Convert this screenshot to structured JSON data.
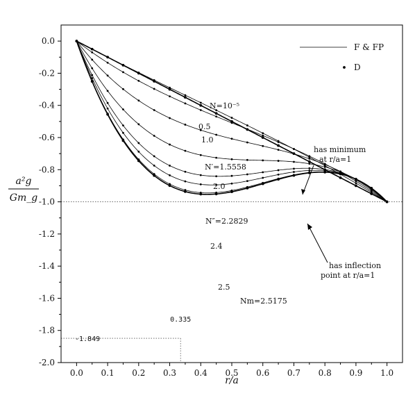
{
  "chart_data": {
    "type": "line",
    "title": "",
    "xlabel": "r/a",
    "ylabel_num": "a²g",
    "ylabel_den": "Gm_g",
    "xlim": [
      -0.05,
      1.05
    ],
    "ylim": [
      -2.0,
      0.1
    ],
    "xticks": [
      0.0,
      0.1,
      0.2,
      0.3,
      0.4,
      0.5,
      0.6,
      0.7,
      0.8,
      0.9,
      1.0
    ],
    "xtick_labels": [
      "0.0",
      "0.1",
      "0.2",
      "0.3",
      "0.4",
      "0.5",
      "0.6",
      "0.7",
      "0.8",
      "0.9",
      "1.0"
    ],
    "yticks": [
      0.0,
      -0.2,
      -0.4,
      -0.6,
      -0.8,
      -1.0,
      -1.2,
      -1.4,
      -1.6,
      -1.8,
      -2.0
    ],
    "ytick_labels": [
      "0.0",
      "-0.2",
      "-0.4",
      "-0.6",
      "-0.8",
      "-1.0",
      "-1.2",
      "-1.4",
      "-1.6",
      "-1.8",
      "-2.0"
    ],
    "legend": {
      "placement": "top-right",
      "entries": [
        {
          "label": "F & FP",
          "marker": "line"
        },
        {
          "label": "D",
          "marker": "dot"
        }
      ]
    },
    "series": [
      {
        "label": "N=10⁻⁵",
        "N": 1e-05,
        "bold": true
      },
      {
        "label": "0.5",
        "N": 0.5,
        "bold": false
      },
      {
        "label": "1.0",
        "N": 1.0,
        "bold": false
      },
      {
        "label": "N′=1.5558",
        "N": 1.5558,
        "bold": false
      },
      {
        "label": "2.0",
        "N": 2.0,
        "bold": false
      },
      {
        "label": "N″=2.2829",
        "N": 2.2829,
        "bold": false
      },
      {
        "label": "2.4",
        "N": 2.4,
        "bold": false
      },
      {
        "label": "2.5",
        "N": 2.5,
        "bold": false
      },
      {
        "label": "Nm=2.5175",
        "N": 2.5175,
        "bold": true
      }
    ],
    "annotations": {
      "min_note_line1": "has minimum",
      "min_note_line2": "at r/a=1",
      "infl_note_line1": "has inflection",
      "infl_note_line2": "point at r/a=1",
      "xmin_label": "0.335",
      "ymin_label": "-1.849",
      "xmin": 0.335,
      "ymin": -1.849
    }
  }
}
